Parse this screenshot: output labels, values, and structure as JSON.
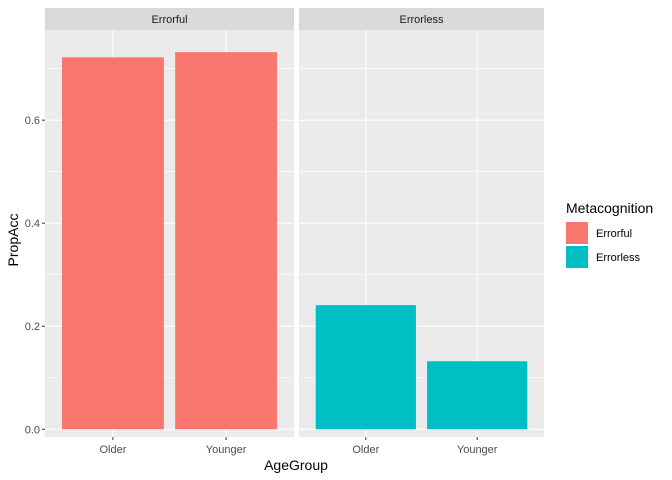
{
  "chart_data": {
    "type": "bar",
    "facet_by": "Metacognition",
    "panels": [
      {
        "strip_label": "Errorful",
        "categories": [
          "Older",
          "Younger"
        ],
        "values": [
          0.722,
          0.732
        ],
        "fill_group": "Errorful"
      },
      {
        "strip_label": "Errorless",
        "categories": [
          "Older",
          "Younger"
        ],
        "values": [
          0.241,
          0.132
        ],
        "fill_group": "Errorless"
      }
    ],
    "xlabel": "AgeGroup",
    "ylabel": "PropAcc",
    "ylim": [
      -0.015,
      0.775
    ],
    "yticks": [
      0.0,
      0.2,
      0.4,
      0.6
    ],
    "ytick_labels": [
      "0.0",
      "0.2",
      "0.4",
      "0.6"
    ],
    "grid": true,
    "legend": {
      "title": "Metacognition",
      "position": "right",
      "items": [
        {
          "label": "Errorful",
          "color": "#F8766D"
        },
        {
          "label": "Errorless",
          "color": "#00BFC4"
        }
      ]
    },
    "colors": {
      "panel_background": "#EBEBEB",
      "grid_major": "#FFFFFF",
      "strip_background": "#D9D9D9"
    }
  }
}
